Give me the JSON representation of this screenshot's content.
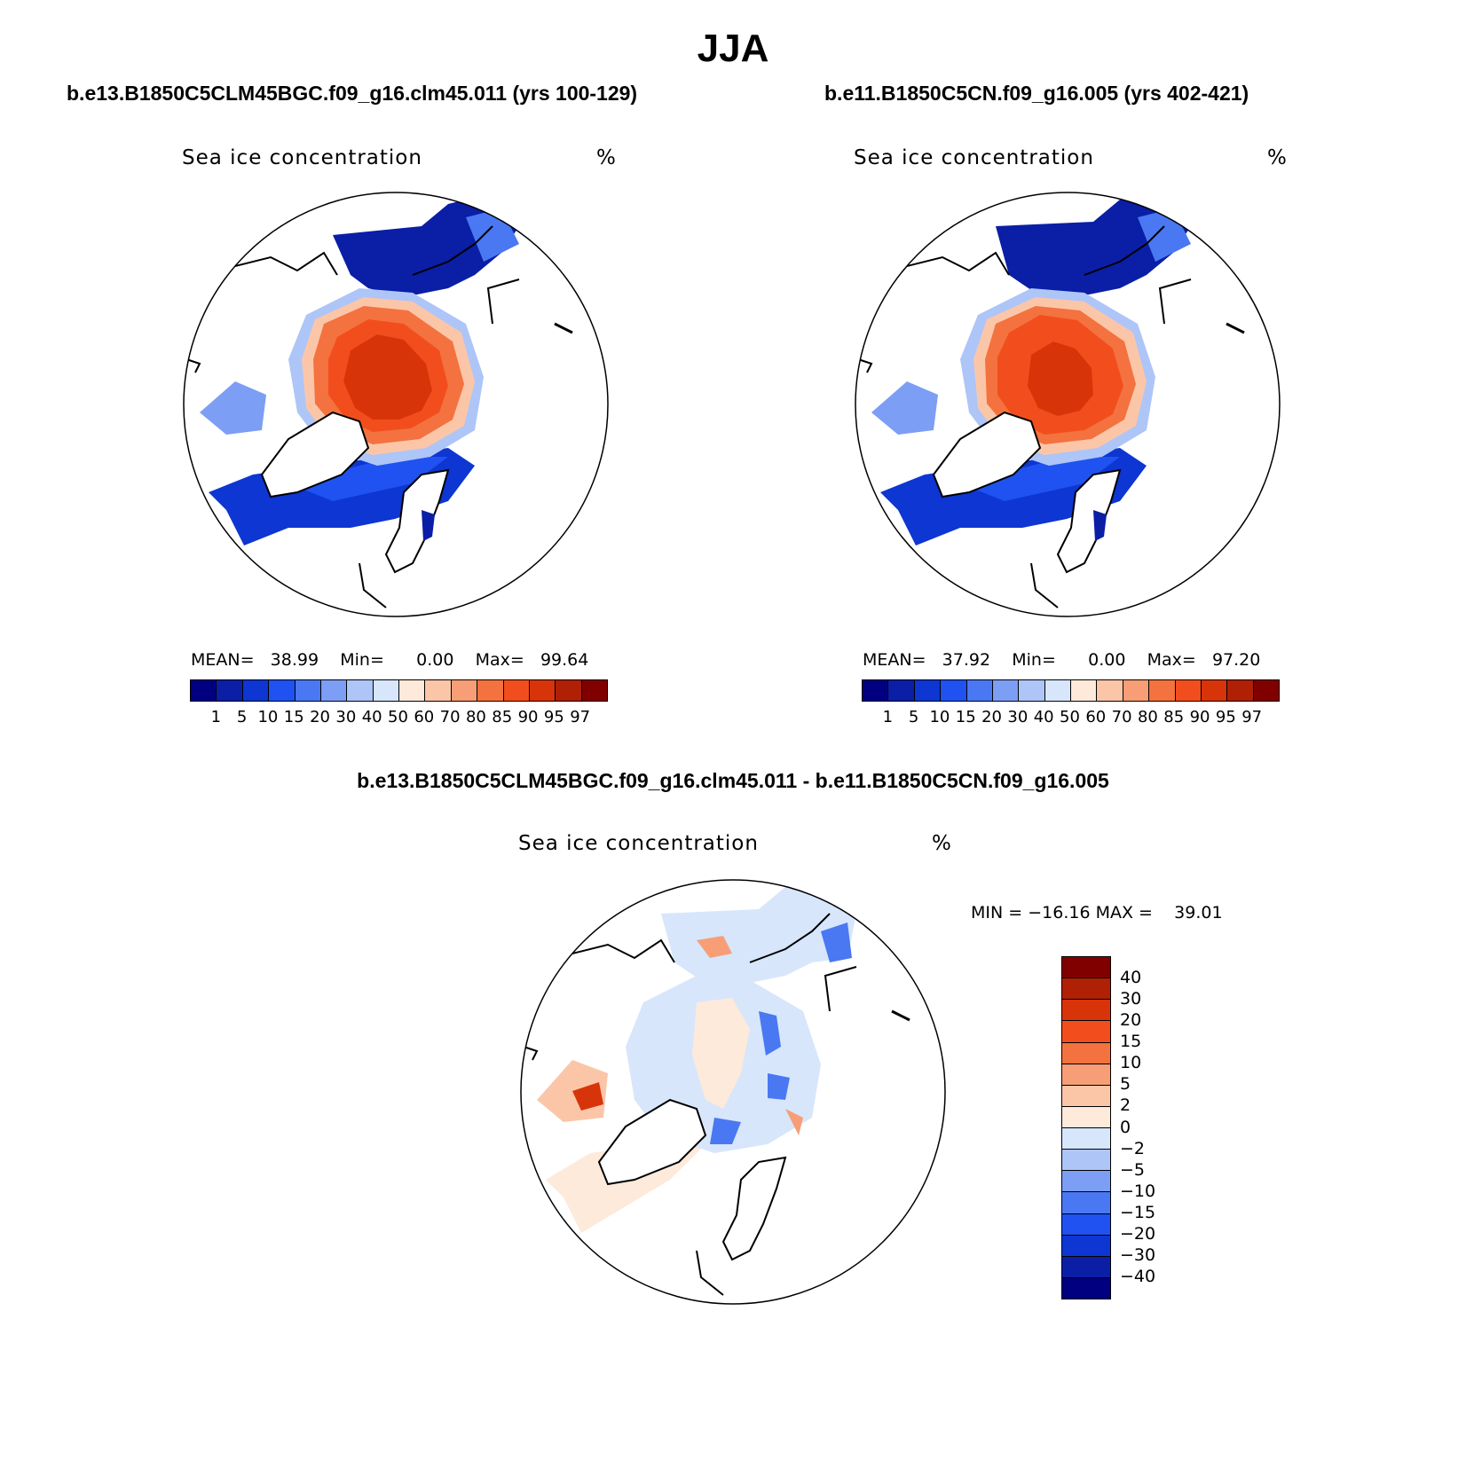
{
  "title": "JJA",
  "panels": [
    {
      "case": "b.e13.B1850C5CLM45BGC.f09_g16.clm45.011 (yrs 100-129)",
      "variable": "Sea ice concentration",
      "units": "%",
      "mean_label": "MEAN=",
      "mean": "38.99",
      "min_label": "Min=",
      "min": "0.00",
      "max_label": "Max=",
      "max": "99.64"
    },
    {
      "case": "b.e11.B1850C5CN.f09_g16.005 (yrs 402-421)",
      "variable": "Sea ice concentration",
      "units": "%",
      "mean_label": "MEAN=",
      "mean": "37.92",
      "min_label": "Min=",
      "min": "0.00",
      "max_label": "Max=",
      "max": "97.20"
    }
  ],
  "diff": {
    "title": "b.e13.B1850C5CLM45BGC.f09_g16.clm45.011 - b.e11.B1850C5CN.f09_g16.005",
    "variable": "Sea ice concentration",
    "units": "%",
    "min_label": "MIN =",
    "min": "−16.16",
    "max_label": "MAX =",
    "max": "39.01"
  },
  "colorbar_abs": {
    "levels": [
      "1",
      "5",
      "10",
      "15",
      "20",
      "30",
      "40",
      "50",
      "60",
      "70",
      "80",
      "85",
      "90",
      "95",
      "97"
    ],
    "colors": [
      "#000080",
      "#0a1fa6",
      "#0d36d2",
      "#1f52f0",
      "#4a78f2",
      "#7d9ef5",
      "#aec5f8",
      "#d7e6fb",
      "#fdeada",
      "#fbc6a8",
      "#f79e77",
      "#f4723f",
      "#f24e1d",
      "#d8340a",
      "#b02005",
      "#800000"
    ]
  },
  "colorbar_diff": {
    "levels": [
      "40",
      "30",
      "20",
      "15",
      "10",
      "5",
      "2",
      "0",
      "−2",
      "−5",
      "−10",
      "−15",
      "−20",
      "−30",
      "−40"
    ],
    "colors": [
      "#800000",
      "#b02005",
      "#d8340a",
      "#f24e1d",
      "#f4723f",
      "#f79e77",
      "#fbc6a8",
      "#fdeada",
      "#d7e6fb",
      "#aec5f8",
      "#7d9ef5",
      "#4a78f2",
      "#1f52f0",
      "#0d36d2",
      "#0a1fa6",
      "#000080"
    ]
  }
}
